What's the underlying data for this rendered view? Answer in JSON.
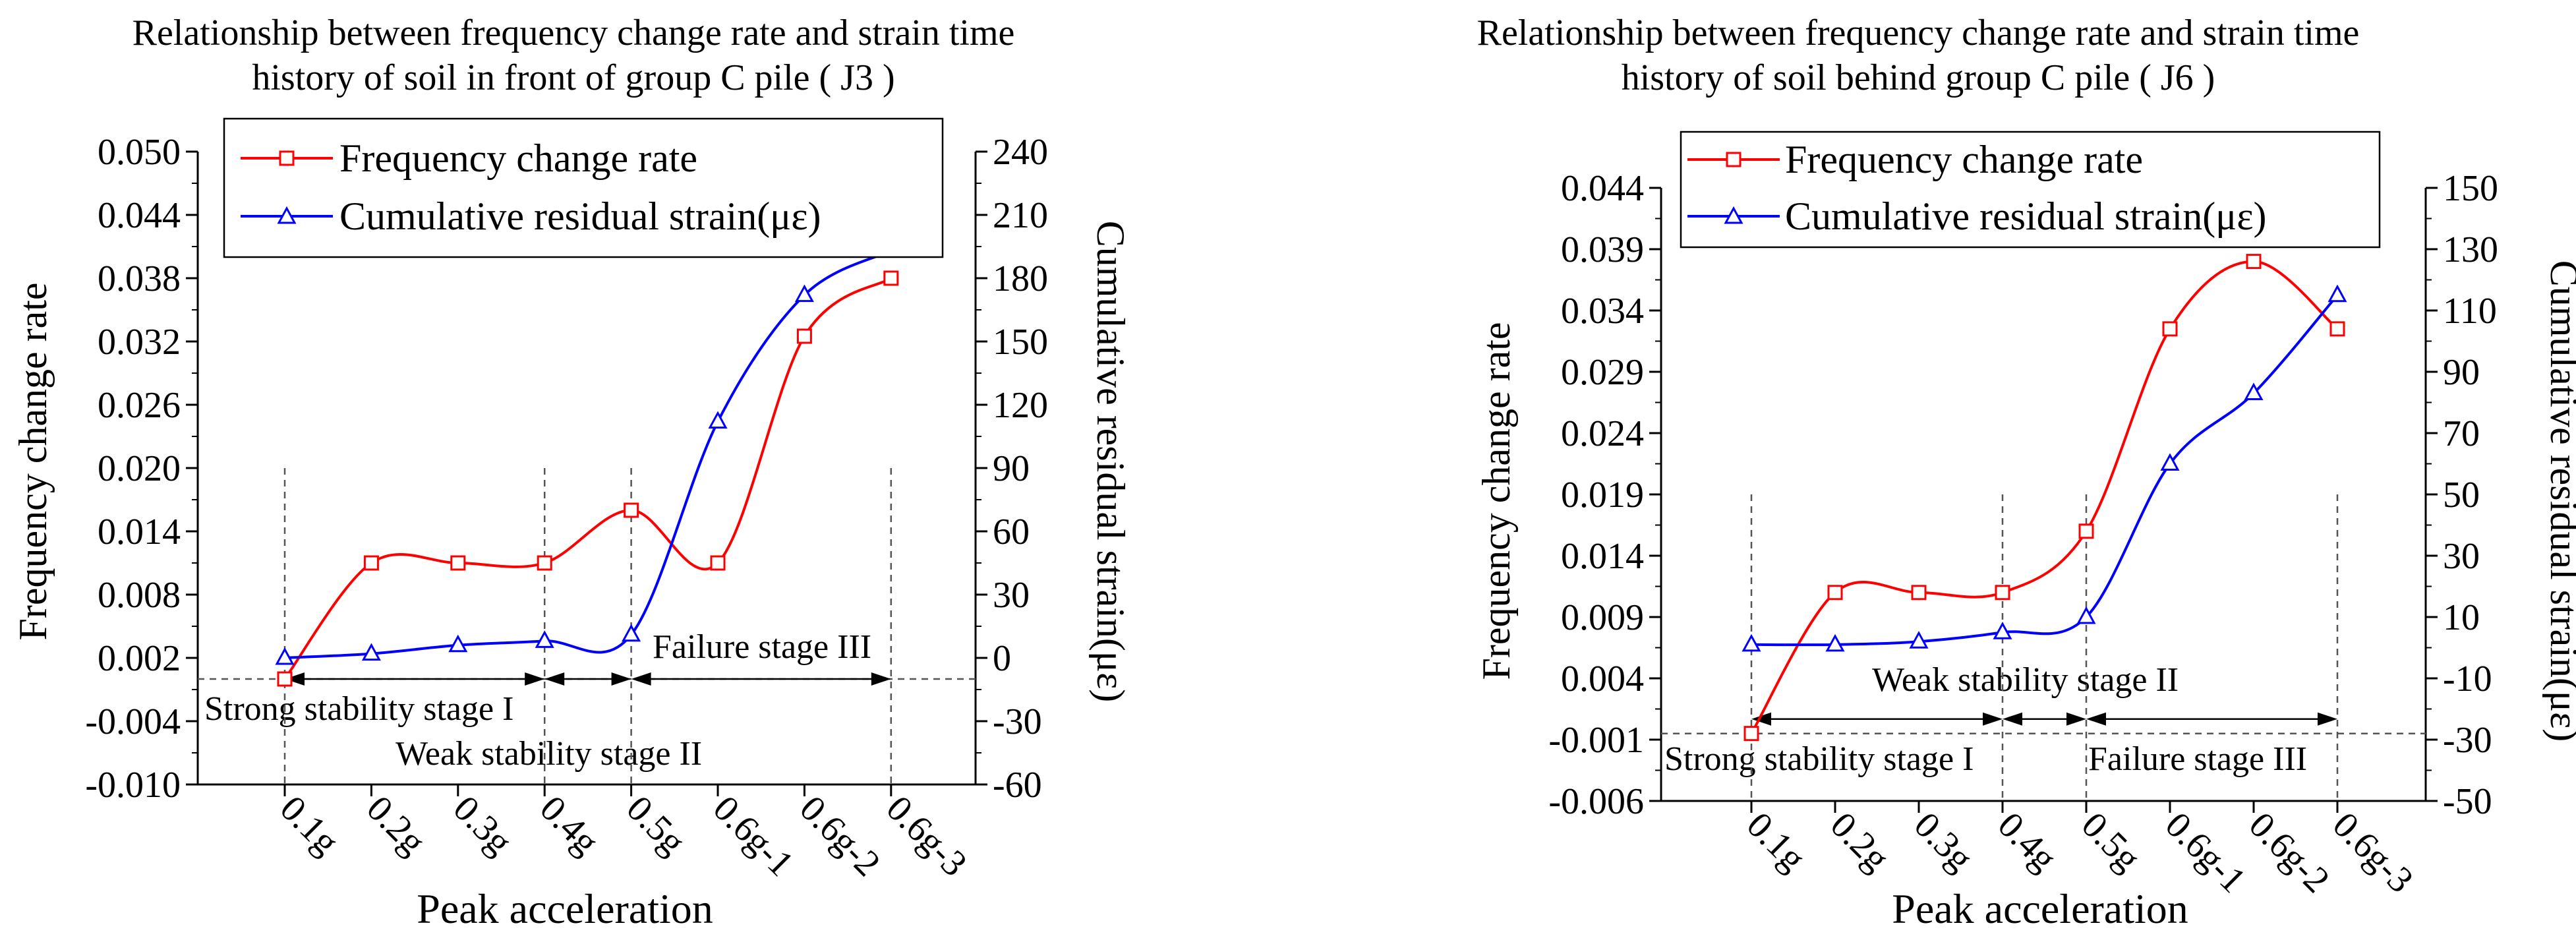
{
  "colors": {
    "frequency": "#ff0000",
    "strain": "#0000ff",
    "axis": "#000000",
    "guide": "#555555"
  },
  "chart_data": [
    {
      "type": "line",
      "title_lines": [
        "Relationship between frequency change rate and strain time",
        "history of soil in front of group C pile ( J3 )"
      ],
      "xlabel": "Peak acceleration",
      "ylabel": "Frequency change rate",
      "y2label": "Cumulative residual strain(με)",
      "categories": [
        "0.1g",
        "0.2g",
        "0.3g",
        "0.4g",
        "0.5g",
        "0.6g-1",
        "0.6g-2",
        "0.6g-3"
      ],
      "ylim": [
        -0.01,
        0.05
      ],
      "yticks": [
        -0.01,
        -0.004,
        0.002,
        0.008,
        0.014,
        0.02,
        0.026,
        0.032,
        0.038,
        0.044,
        0.05
      ],
      "y_tick_labels": [
        "-0.010",
        "-0.004",
        "0.002",
        "0.008",
        "0.014",
        "0.020",
        "0.026",
        "0.032",
        "0.038",
        "0.044",
        "0.050"
      ],
      "y2lim": [
        -60,
        240
      ],
      "y2ticks": [
        -60,
        -30,
        0,
        30,
        60,
        90,
        120,
        150,
        180,
        210,
        240
      ],
      "y2_tick_labels": [
        "-60",
        "-30",
        "0",
        "30",
        "60",
        "90",
        "120",
        "150",
        "180",
        "210",
        "240"
      ],
      "legend": {
        "position": "top-center",
        "entries": [
          "Frequency change rate",
          "Cumulative residual strain(με)"
        ]
      },
      "series": [
        {
          "name": "Frequency change rate",
          "axis": "left",
          "marker": "square",
          "values": [
            0.0,
            0.011,
            0.011,
            0.011,
            0.016,
            0.011,
            0.0325,
            0.038
          ]
        },
        {
          "name": "Cumulative residual strain(με)",
          "axis": "right",
          "marker": "triangle",
          "values": [
            0,
            2,
            6,
            8,
            11,
            112,
            172,
            193
          ]
        }
      ],
      "baseline_value": 0.0,
      "vlines_at": [
        "0.1g",
        "0.4g",
        "0.5g",
        "0.6g-3"
      ],
      "arrow_spans": [
        [
          "0.1g",
          "0.4g"
        ],
        [
          "0.4g",
          "0.5g"
        ],
        [
          "0.5g",
          "0.6g-3"
        ]
      ],
      "annotations": {
        "stage1": "Strong stability stage I",
        "stage2": "Weak stability stage II",
        "stage3": "Failure stage III"
      }
    },
    {
      "type": "line",
      "title_lines": [
        "Relationship between frequency change rate and strain time",
        "history of soil behind group C pile ( J6 )"
      ],
      "xlabel": "Peak acceleration",
      "ylabel": "Frequency change rate",
      "y2label": "Cumulative residual strain(με)",
      "categories": [
        "0.1g",
        "0.2g",
        "0.3g",
        "0.4g",
        "0.5g",
        "0.6g-1",
        "0.6g-2",
        "0.6g-3"
      ],
      "ylim": [
        -0.006,
        0.044
      ],
      "yticks": [
        -0.006,
        -0.001,
        0.004,
        0.009,
        0.014,
        0.019,
        0.024,
        0.029,
        0.034,
        0.039,
        0.044
      ],
      "y_tick_labels": [
        "-0.006",
        "-0.001",
        "0.004",
        "0.009",
        "0.014",
        "0.019",
        "0.024",
        "0.029",
        "0.034",
        "0.039",
        "0.044"
      ],
      "y2lim": [
        -50,
        150
      ],
      "y2ticks": [
        -50,
        -30,
        -10,
        10,
        30,
        50,
        70,
        90,
        110,
        130,
        150
      ],
      "y2_tick_labels": [
        "-50",
        "-30",
        "-10",
        "10",
        "30",
        "50",
        "70",
        "90",
        "110",
        "130",
        "150"
      ],
      "legend": {
        "position": "top-center",
        "entries": [
          "Frequency change rate",
          "Cumulative residual strain(με)"
        ]
      },
      "series": [
        {
          "name": "Frequency change rate",
          "axis": "left",
          "marker": "square",
          "values": [
            -0.0005,
            0.011,
            0.011,
            0.011,
            0.016,
            0.0325,
            0.038,
            0.0325
          ]
        },
        {
          "name": "Cumulative residual strain(με)",
          "axis": "right",
          "marker": "triangle",
          "values": [
            1,
            1,
            2,
            5,
            10,
            60,
            83,
            115
          ]
        }
      ],
      "baseline_value": -0.0005,
      "vlines_at": [
        "0.1g",
        "0.4g",
        "0.5g",
        "0.6g-3"
      ],
      "arrow_spans": [
        [
          "0.1g",
          "0.4g"
        ],
        [
          "0.4g",
          "0.5g"
        ],
        [
          "0.5g",
          "0.6g-3"
        ]
      ],
      "annotations": {
        "stage1": "Strong stability stage I",
        "stage2": "Weak stability stage II",
        "stage3": "Failure  stage III"
      }
    }
  ]
}
